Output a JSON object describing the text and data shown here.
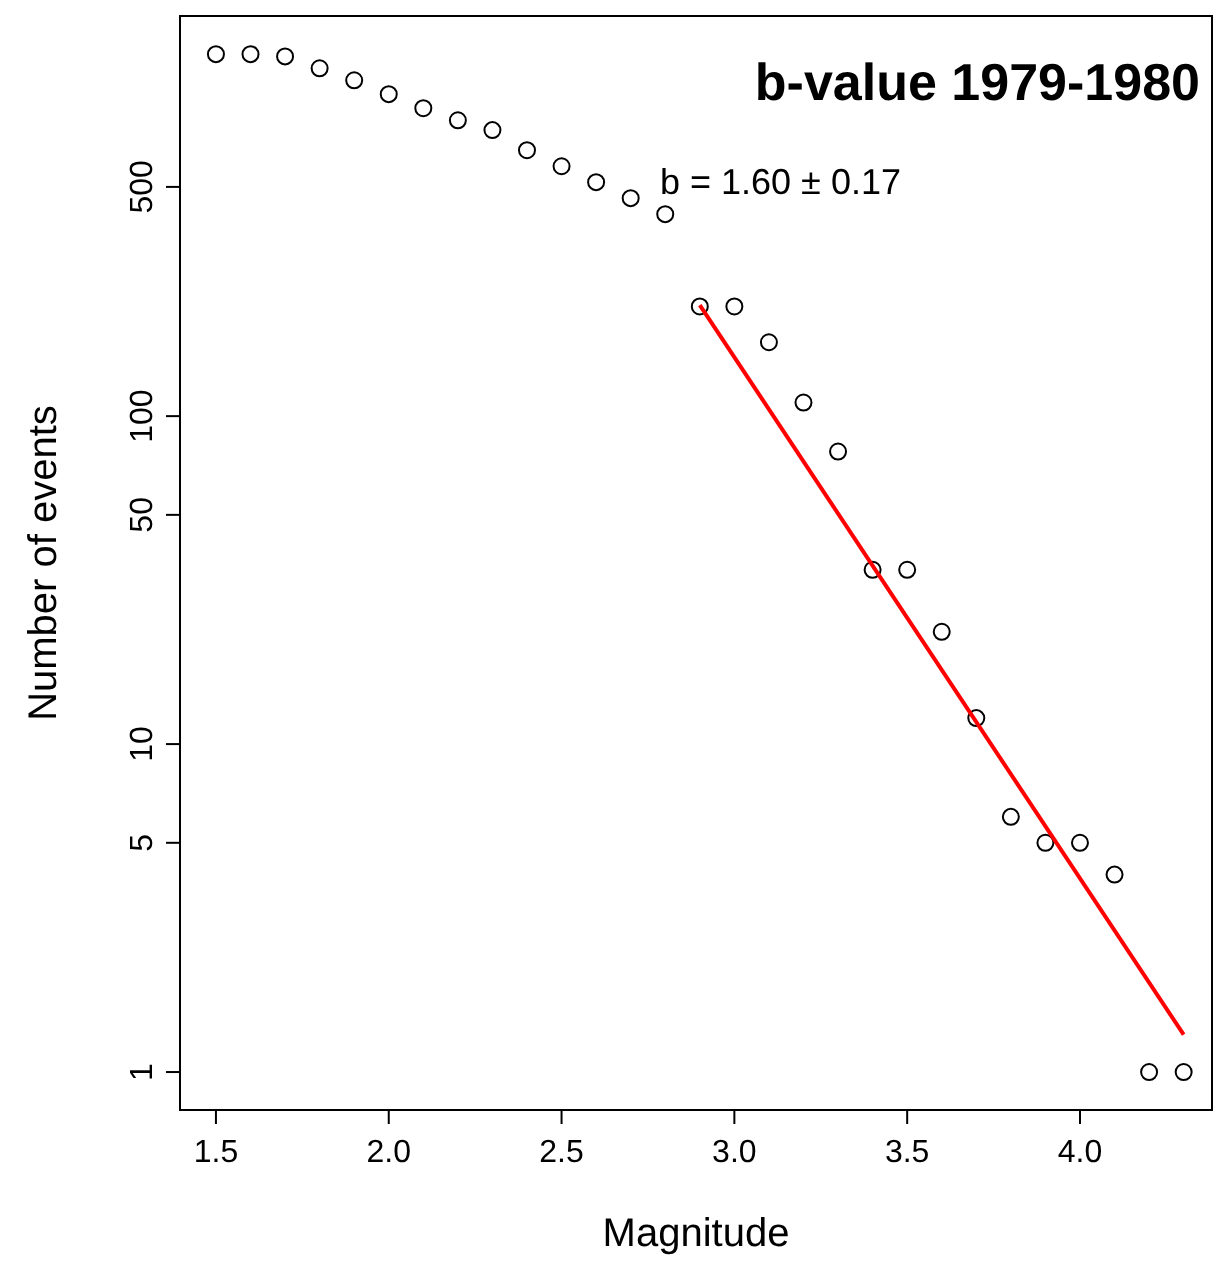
{
  "chart_data": {
    "type": "scatter",
    "title": "b-value 1979-1980",
    "xlabel": "Magnitude",
    "ylabel": "Number of events",
    "annotations": [
      "b = 1.60 ± 0.17"
    ],
    "x": [
      1.5,
      1.6,
      1.7,
      1.8,
      1.9,
      2.0,
      2.1,
      2.2,
      2.3,
      2.4,
      2.5,
      2.6,
      2.7,
      2.8,
      2.9,
      3.0,
      3.1,
      3.2,
      3.3,
      3.4,
      3.5,
      3.6,
      3.7,
      3.8,
      3.9,
      4.0,
      4.1,
      4.2,
      4.3
    ],
    "series": [
      {
        "color": "#000000",
        "marker": "circle",
        "values": [
          1270,
          1270,
          1250,
          1150,
          1057,
          959,
          869,
          798,
          745,
          647,
          578,
          517,
          462,
          413,
          216,
          216,
          168,
          110,
          78,
          34,
          34,
          22,
          12,
          6,
          5,
          5,
          4,
          1,
          1
        ]
      },
      {
        "type": "line",
        "color": "#ff0000",
        "marker": "none",
        "line_style": "solid",
        "x": [
          2.9,
          4.3
        ],
        "values": [
          218,
          1.3
        ]
      }
    ],
    "log": "y",
    "grid": false,
    "xlim": [
      1.396,
      4.382
    ],
    "ylim": [
      0.766,
      1660
    ],
    "xticks": [
      {
        "value": 1.5,
        "label": "1.5"
      },
      {
        "value": 2,
        "label": "2.0"
      },
      {
        "value": 2.5,
        "label": "2.5"
      },
      {
        "value": 3,
        "label": "3.0"
      },
      {
        "value": 3.5,
        "label": "3.5"
      },
      {
        "value": 4,
        "label": "4.0"
      }
    ],
    "yticks": [
      1,
      5,
      10,
      50,
      100,
      500
    ]
  }
}
